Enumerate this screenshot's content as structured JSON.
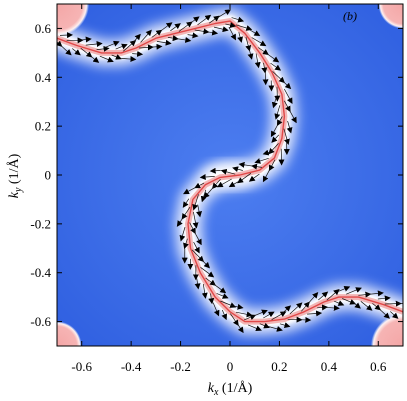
{
  "chart_data": {
    "type": "heatmap",
    "panel_label": "(b)",
    "xlabel": {
      "symbol": "k",
      "sub": "x",
      "unit": " (1/Å)"
    },
    "ylabel": {
      "symbol": "k",
      "sub": "y",
      "unit": " (1/Å)"
    },
    "xlim": [
      -0.7,
      0.7
    ],
    "ylim": [
      -0.7,
      0.7
    ],
    "xticks": [
      -0.6,
      -0.4,
      -0.2,
      0,
      0.2,
      0.4,
      0.6
    ],
    "yticks": [
      -0.6,
      -0.4,
      -0.2,
      0,
      0.2,
      0.4,
      0.6
    ],
    "xtick_labels": [
      "-0.6",
      "-0.4",
      "-0.2",
      "0",
      "0.2",
      "0.4",
      "0.6"
    ],
    "ytick_labels": [
      "-0.6",
      "-0.4",
      "-0.2",
      "0",
      "0.2",
      "0.4",
      "0.6"
    ],
    "colormap": {
      "low": "#3a66e0",
      "mid": "#ffffff",
      "high": "#e84a4a"
    },
    "corner_pockets": [
      {
        "center": [
          -0.7,
          0.7
        ],
        "radius": 0.13
      },
      {
        "center": [
          0.7,
          0.7
        ],
        "radius": 0.1
      },
      {
        "center": [
          -0.7,
          -0.7
        ],
        "radius": 0.1
      },
      {
        "center": [
          0.7,
          -0.7
        ],
        "radius": 0.13
      }
    ],
    "fermi_contour": [
      [
        -0.7,
        0.56
      ],
      [
        -0.62,
        0.53
      ],
      [
        -0.52,
        0.5
      ],
      [
        -0.44,
        0.5
      ],
      [
        -0.38,
        0.52
      ],
      [
        -0.3,
        0.56
      ],
      [
        -0.22,
        0.58
      ],
      [
        -0.14,
        0.6
      ],
      [
        -0.06,
        0.62
      ],
      [
        0.0,
        0.63
      ],
      [
        0.06,
        0.58
      ],
      [
        0.12,
        0.5
      ],
      [
        0.17,
        0.42
      ],
      [
        0.21,
        0.33
      ],
      [
        0.22,
        0.24
      ],
      [
        0.21,
        0.15
      ],
      [
        0.18,
        0.07
      ],
      [
        0.12,
        0.02
      ],
      [
        0.04,
        0.0
      ],
      [
        -0.04,
        -0.01
      ],
      [
        -0.1,
        -0.04
      ],
      [
        -0.15,
        -0.1
      ],
      [
        -0.17,
        -0.2
      ],
      [
        -0.16,
        -0.3
      ],
      [
        -0.12,
        -0.4
      ],
      [
        -0.06,
        -0.5
      ],
      [
        0.0,
        -0.56
      ],
      [
        0.06,
        -0.6
      ],
      [
        0.14,
        -0.6
      ],
      [
        0.22,
        -0.59
      ],
      [
        0.3,
        -0.56
      ],
      [
        0.38,
        -0.52
      ],
      [
        0.44,
        -0.5
      ],
      [
        0.52,
        -0.5
      ],
      [
        0.62,
        -0.53
      ],
      [
        0.7,
        -0.56
      ]
    ],
    "spin_texture_arrows": "tangential arrows along the contour"
  }
}
